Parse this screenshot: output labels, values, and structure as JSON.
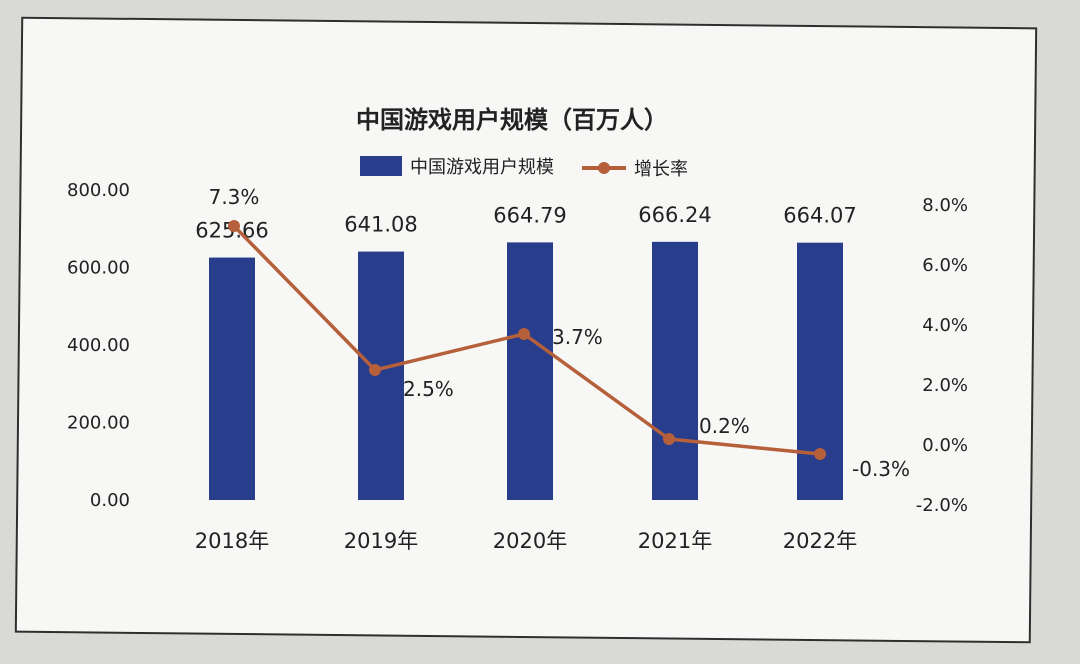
{
  "chart_data": {
    "type": "bar+line",
    "title": "中国游戏用户规模（百万人）",
    "categories": [
      "2018年",
      "2019年",
      "2020年",
      "2021年",
      "2022年"
    ],
    "series": [
      {
        "name": "中国游戏用户规模",
        "type": "bar",
        "axis": "left",
        "color": "#283d8c",
        "values": [
          625.66,
          641.08,
          664.79,
          666.24,
          664.07
        ],
        "labels": [
          "625.66",
          "641.08",
          "664.79",
          "666.24",
          "664.07"
        ]
      },
      {
        "name": "增长率",
        "type": "line",
        "axis": "right",
        "color": "#b5603a",
        "values": [
          7.3,
          2.5,
          3.7,
          0.2,
          -0.3
        ],
        "labels": [
          "7.3%",
          "2.5%",
          "3.7%",
          "0.2%",
          "-0.3%"
        ]
      }
    ],
    "y_left": {
      "ylim": [
        0,
        800
      ],
      "ticks": [
        0,
        200,
        400,
        600,
        800
      ],
      "tick_labels": [
        "0.00",
        "200.00",
        "400.00",
        "600.00",
        "800.00"
      ]
    },
    "y_right": {
      "ylim": [
        -2,
        8
      ],
      "ticks": [
        -2,
        0,
        2,
        4,
        6,
        8
      ],
      "tick_labels": [
        "-2.0%",
        "0.0%",
        "2.0%",
        "4.0%",
        "6.0%",
        "8.0%"
      ]
    },
    "grid": false,
    "legend": "top-center"
  }
}
